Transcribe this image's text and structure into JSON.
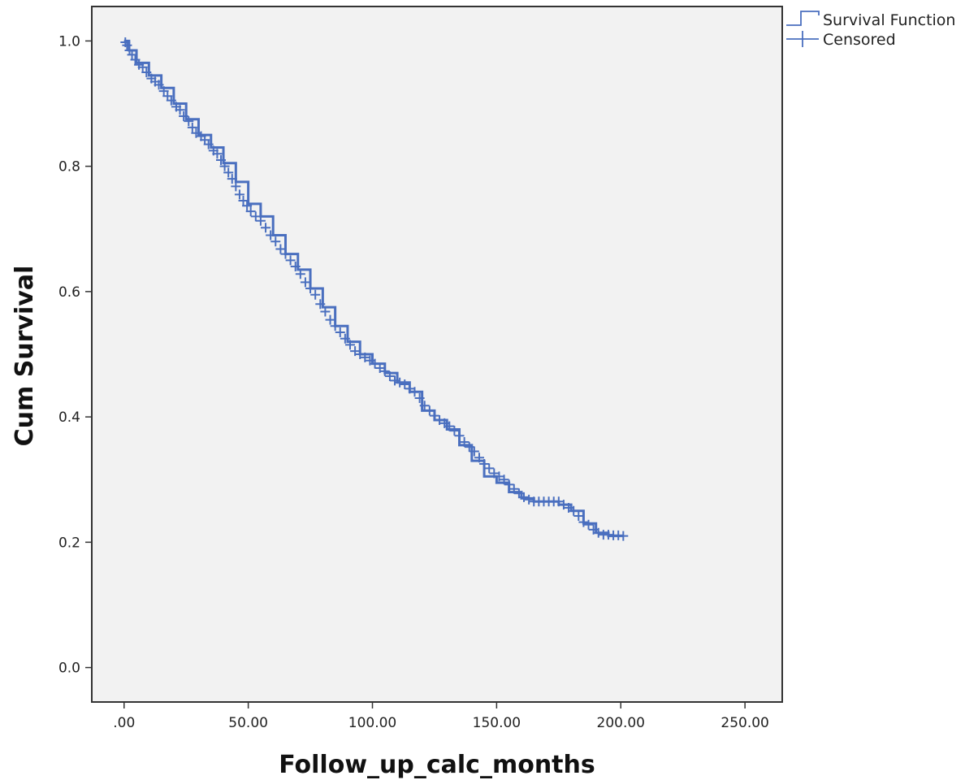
{
  "chart_data": {
    "type": "line",
    "title": "",
    "xlabel": "Follow_up_calc_months",
    "ylabel": "Cum Survival",
    "xlim": [
      -13,
      265
    ],
    "ylim": [
      -0.055,
      1.055
    ],
    "x_ticks": [
      0,
      50,
      100,
      150,
      200,
      250
    ],
    "x_tick_labels": [
      ".00",
      "50.00",
      "100.00",
      "150.00",
      "200.00",
      "250.00"
    ],
    "y_ticks": [
      0.0,
      0.2,
      0.4,
      0.6,
      0.8,
      1.0
    ],
    "y_tick_labels": [
      "0.0",
      "0.2",
      "0.4",
      "0.6",
      "0.8",
      "1.0"
    ],
    "grid": false,
    "plot_background": "#f2f2f2",
    "series_color": "#4a6fbf",
    "legend_position": "top-right (outside plot)",
    "legend": [
      "Survival Function",
      "Censored"
    ],
    "series": [
      {
        "name": "Survival Function",
        "style": "step",
        "x": [
          0,
          2,
          5,
          10,
          15,
          20,
          25,
          30,
          35,
          40,
          45,
          50,
          55,
          60,
          65,
          70,
          75,
          80,
          85,
          90,
          95,
          100,
          105,
          110,
          115,
          120,
          125,
          130,
          135,
          140,
          145,
          150,
          155,
          160,
          165,
          170,
          175,
          180,
          185,
          190,
          195,
          201
        ],
        "y": [
          1.0,
          0.985,
          0.965,
          0.945,
          0.925,
          0.9,
          0.875,
          0.85,
          0.83,
          0.805,
          0.775,
          0.74,
          0.72,
          0.69,
          0.66,
          0.635,
          0.605,
          0.575,
          0.545,
          0.52,
          0.5,
          0.485,
          0.47,
          0.455,
          0.44,
          0.41,
          0.395,
          0.38,
          0.355,
          0.33,
          0.305,
          0.295,
          0.28,
          0.27,
          0.265,
          0.265,
          0.26,
          0.25,
          0.23,
          0.215,
          0.21,
          0.21
        ]
      },
      {
        "name": "Censored",
        "style": "marker",
        "marker": "+",
        "x": [
          0.5,
          1.2,
          2.2,
          3.2,
          4.5,
          6,
          7.5,
          9,
          11,
          12.5,
          14,
          16,
          17.5,
          19,
          21,
          22.5,
          24,
          26,
          27.5,
          29,
          31,
          32.5,
          34,
          36,
          37.5,
          39,
          40.5,
          42,
          43.5,
          45,
          46.5,
          48,
          49.5,
          51,
          53,
          55,
          57,
          59,
          61,
          63,
          65,
          67,
          69,
          71,
          73,
          75,
          77,
          79,
          81,
          83,
          85,
          87,
          89,
          91,
          93,
          95,
          97,
          99,
          101,
          103,
          105,
          107,
          109,
          111,
          113,
          115,
          117,
          119,
          121,
          123,
          125,
          127,
          129,
          131,
          133,
          135,
          137,
          139,
          141,
          143,
          145,
          147,
          149,
          151,
          153,
          155,
          157,
          159,
          161,
          163,
          165,
          167,
          169,
          171,
          173,
          175,
          177,
          179,
          181,
          183,
          185,
          187,
          189,
          191,
          193,
          195,
          197,
          199,
          201
        ],
        "y": [
          0.998,
          0.993,
          0.985,
          0.978,
          0.97,
          0.962,
          0.958,
          0.95,
          0.94,
          0.935,
          0.93,
          0.92,
          0.912,
          0.905,
          0.895,
          0.89,
          0.88,
          0.872,
          0.862,
          0.853,
          0.848,
          0.842,
          0.835,
          0.825,
          0.82,
          0.81,
          0.8,
          0.79,
          0.78,
          0.768,
          0.755,
          0.745,
          0.737,
          0.728,
          0.72,
          0.713,
          0.702,
          0.69,
          0.68,
          0.668,
          0.66,
          0.65,
          0.64,
          0.628,
          0.615,
          0.605,
          0.595,
          0.58,
          0.568,
          0.555,
          0.545,
          0.535,
          0.525,
          0.515,
          0.505,
          0.5,
          0.495,
          0.49,
          0.485,
          0.478,
          0.473,
          0.465,
          0.458,
          0.455,
          0.452,
          0.445,
          0.44,
          0.43,
          0.418,
          0.41,
          0.402,
          0.395,
          0.39,
          0.385,
          0.378,
          0.37,
          0.36,
          0.352,
          0.345,
          0.335,
          0.325,
          0.318,
          0.31,
          0.305,
          0.3,
          0.292,
          0.285,
          0.278,
          0.272,
          0.268,
          0.265,
          0.265,
          0.265,
          0.265,
          0.265,
          0.265,
          0.26,
          0.255,
          0.25,
          0.242,
          0.232,
          0.228,
          0.22,
          0.215,
          0.212,
          0.212,
          0.211,
          0.211,
          0.21
        ]
      }
    ]
  }
}
